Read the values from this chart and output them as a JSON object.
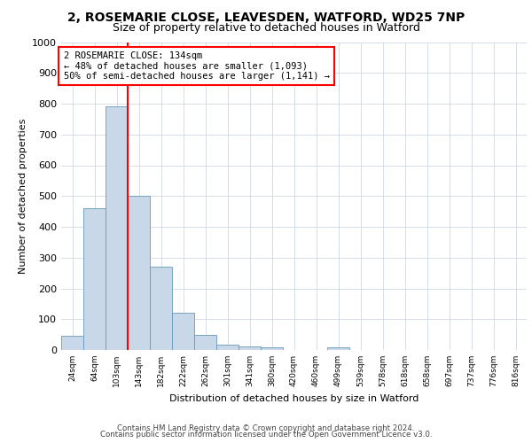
{
  "title_line1": "2, ROSEMARIE CLOSE, LEAVESDEN, WATFORD, WD25 7NP",
  "title_line2": "Size of property relative to detached houses in Watford",
  "xlabel": "Distribution of detached houses by size in Watford",
  "ylabel": "Number of detached properties",
  "footer_line1": "Contains HM Land Registry data © Crown copyright and database right 2024.",
  "footer_line2": "Contains public sector information licensed under the Open Government Licence v3.0.",
  "annotation_line1": "2 ROSEMARIE CLOSE: 134sqm",
  "annotation_line2": "← 48% of detached houses are smaller (1,093)",
  "annotation_line3": "50% of semi-detached houses are larger (1,141) →",
  "categories": [
    "24sqm",
    "64sqm",
    "103sqm",
    "143sqm",
    "182sqm",
    "222sqm",
    "262sqm",
    "301sqm",
    "341sqm",
    "380sqm",
    "420sqm",
    "460sqm",
    "499sqm",
    "539sqm",
    "578sqm",
    "618sqm",
    "658sqm",
    "697sqm",
    "737sqm",
    "776sqm",
    "816sqm"
  ],
  "values": [
    45,
    460,
    790,
    500,
    270,
    120,
    50,
    18,
    12,
    10,
    0,
    0,
    10,
    0,
    0,
    0,
    0,
    0,
    0,
    0,
    0
  ],
  "bar_color": "#c8d8e8",
  "bar_edge_color": "#6699bb",
  "red_line_index": 2.5,
  "ylim": [
    0,
    1000
  ],
  "yticks": [
    0,
    100,
    200,
    300,
    400,
    500,
    600,
    700,
    800,
    900,
    1000
  ],
  "background_color": "#ffffff",
  "grid_color": "#d0d8e0",
  "red_line_color": "#ff0000",
  "title_fontsize": 10,
  "subtitle_fontsize": 9,
  "ylabel_fontsize": 8,
  "xlabel_fontsize": 8,
  "ytick_fontsize": 8,
  "xtick_fontsize": 6.5,
  "footer_fontsize": 6.2,
  "ann_fontsize": 7.5
}
